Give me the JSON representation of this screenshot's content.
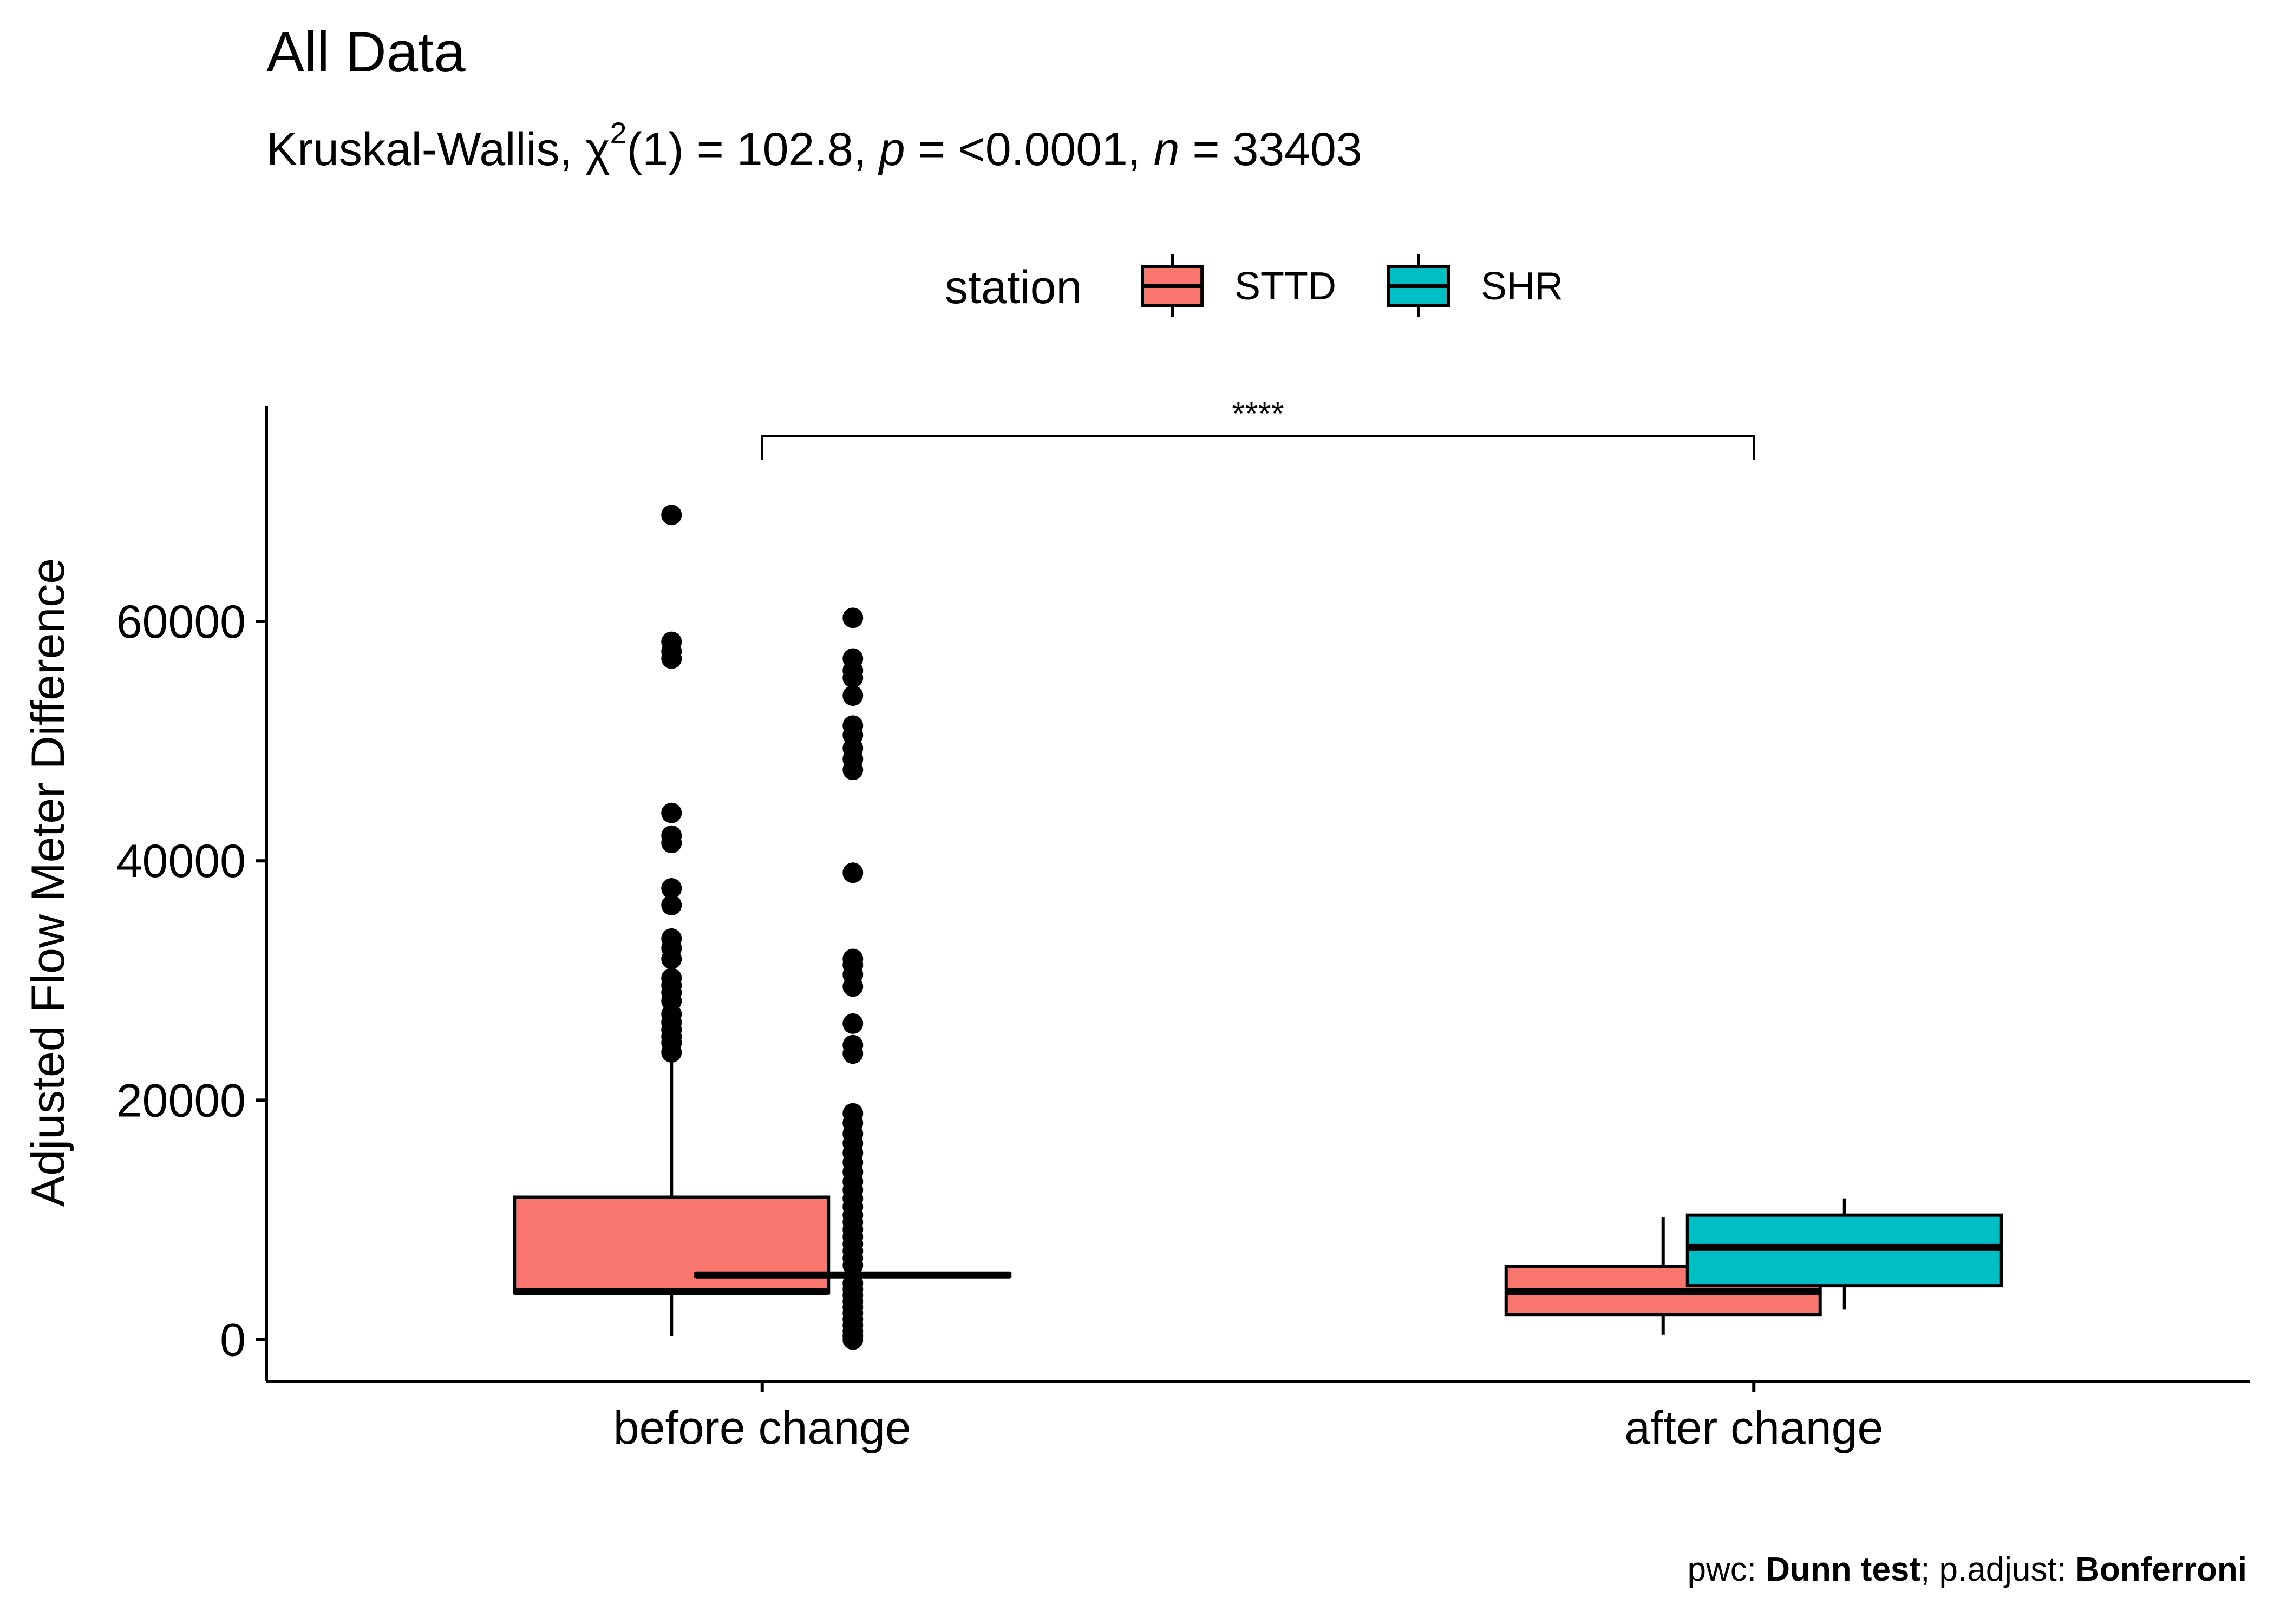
{
  "chart_data": {
    "type": "box",
    "title": "All Data",
    "subtitle": {
      "prefix": "Kruskal-Wallis, ",
      "chi": "χ",
      "sup": "2",
      "df": "(1) = 102.8, ",
      "p_symbol": "p",
      "p_value": " = <0.0001, ",
      "n_symbol": "n",
      "n_value": " = 33403"
    },
    "legend": {
      "title": "station",
      "items": [
        {
          "label": "STTD",
          "color": "#F8766D"
        },
        {
          "label": "SHR",
          "color": "#00BFC4"
        }
      ]
    },
    "ylabel": "Adjusted Flow Meter Difference",
    "xlabel": "",
    "categories": [
      "before change",
      "after change"
    ],
    "ylim": [
      -3500,
      78000
    ],
    "yticks": [
      0,
      20000,
      40000,
      60000
    ],
    "ytick_labels": [
      "0",
      "20000",
      "40000",
      "60000"
    ],
    "series": [
      {
        "name": "STTD",
        "color": "#F8766D",
        "boxes": [
          {
            "category": "before change",
            "whisker_low": 300,
            "q1": 3900,
            "median": 4000,
            "q3": 11900,
            "whisker_high": 23600,
            "outliers": [
              24000,
              24800,
              25300,
              25900,
              26500,
              27200,
              28300,
              29000,
              29600,
              30200,
              31800,
              32700,
              33500,
              36300,
              37700,
              41500,
              42100,
              44000,
              56900,
              57500,
              58300,
              68900
            ]
          },
          {
            "category": "after change",
            "whisker_low": 400,
            "q1": 2100,
            "median": 4000,
            "q3": 6100,
            "whisker_high": 10200,
            "outliers": []
          }
        ]
      },
      {
        "name": "SHR",
        "color": "#00BFC4",
        "boxes": [
          {
            "category": "before change",
            "whisker_low": 5300,
            "q1": 5300,
            "median": 5400,
            "q3": 5500,
            "whisker_high": 5500,
            "outliers": [
              0,
              300,
              700,
              1200,
              1700,
              2200,
              2700,
              3200,
              3700,
              4200,
              4700,
              6200,
              6800,
              7400,
              8000,
              8600,
              9200,
              9800,
              10400,
              11100,
              11800,
              12500,
              13200,
              14000,
              14800,
              15600,
              16400,
              17200,
              18100,
              18900,
              23900,
              24600,
              26400,
              29500,
              30500,
              31300,
              31800,
              39000,
              47600,
              48500,
              49400,
              50500,
              51300,
              53800,
              55300,
              55900,
              56900,
              60300
            ]
          },
          {
            "category": "after change",
            "whisker_low": 2500,
            "q1": 4500,
            "median": 7700,
            "q3": 10400,
            "whisker_high": 11800,
            "outliers": []
          }
        ]
      }
    ],
    "comparison": {
      "from": "before change",
      "to": "after change",
      "label": "****",
      "y": 75500,
      "tip": 73500
    },
    "caption": {
      "pwc_prefix": "pwc: ",
      "pwc_method": "Dunn test",
      "padj_prefix": "; p.adjust: ",
      "padj_method": "Bonferroni"
    }
  }
}
